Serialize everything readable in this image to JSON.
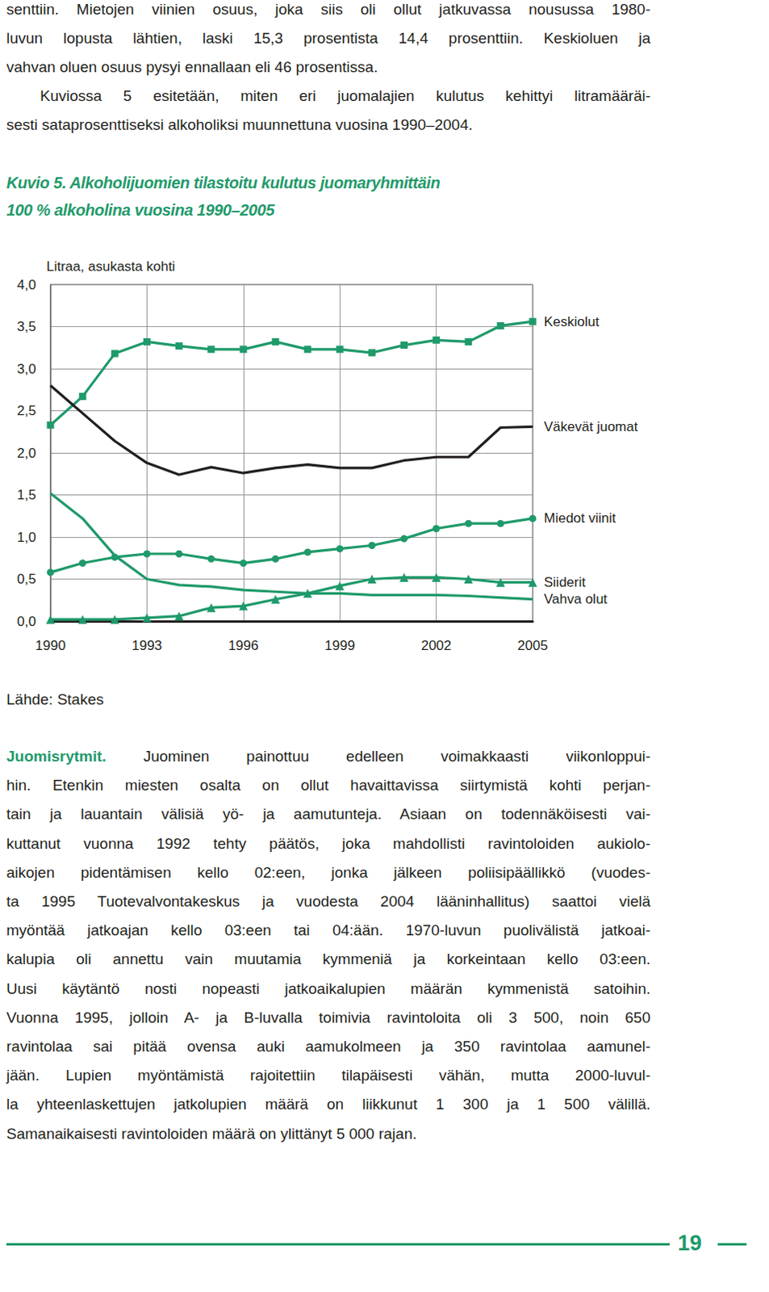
{
  "intro": {
    "paragraphs": [
      {
        "lines": [
          "senttiin. Mietojen viinien osuus, joka siis oli ollut jatkuvassa nousussa 1980-",
          "luvun lopusta lähtien, laski 15,3 prosentista 14,4 prosenttiin. Keskioluen ja",
          "vahvan oluen osuus pysyi ennallaan eli 46 prosentissa."
        ]
      },
      {
        "lines": [
          "Kuviossa 5 esitetään, miten eri juomalajien kulutus kehittyi litramääräi-",
          "sesti sataprosenttiseksi alkoholiksi muunnettuna vuosina 1990–2004."
        ]
      }
    ]
  },
  "figure": {
    "title_lines": [
      "Kuvio 5. Alkoholijuomien tilastoitu kulutus juomaryhmittäin",
      "100 % alkoholina vuosina 1990–2005"
    ],
    "source": "Lähde: Stakes"
  },
  "chart_data": {
    "type": "line",
    "ylabel": "Litraa, asukasta kohti",
    "x": [
      1990,
      1991,
      1992,
      1993,
      1994,
      1995,
      1996,
      1997,
      1998,
      1999,
      2000,
      2001,
      2002,
      2003,
      2004,
      2005
    ],
    "xlim": [
      1990,
      2005
    ],
    "xticks": [
      1990,
      1993,
      1996,
      1999,
      2002,
      2005
    ],
    "ylim": [
      0,
      4
    ],
    "yticks": [
      {
        "value": 0,
        "label": "0,0"
      },
      {
        "value": 0.5,
        "label": "0,5"
      },
      {
        "value": 1,
        "label": "1,0"
      },
      {
        "value": 1.5,
        "label": "1,5"
      },
      {
        "value": 2,
        "label": "2,0"
      },
      {
        "value": 2.5,
        "label": "2,5"
      },
      {
        "value": 3,
        "label": "3,0"
      },
      {
        "value": 3.5,
        "label": "3,5"
      },
      {
        "value": 4,
        "label": "4,0"
      }
    ],
    "grid": true,
    "series": [
      {
        "name": "Keskiolut",
        "color": "#1f9a6a",
        "marker": "square",
        "values": [
          2.33,
          2.67,
          3.18,
          3.32,
          3.27,
          3.23,
          3.23,
          3.32,
          3.23,
          3.23,
          3.19,
          3.28,
          3.34,
          3.32,
          3.51,
          3.56
        ]
      },
      {
        "name": "Väkevät juomat",
        "color": "#231f20",
        "marker": "none",
        "values": [
          2.8,
          2.47,
          2.14,
          1.88,
          1.74,
          1.83,
          1.76,
          1.82,
          1.86,
          1.82,
          1.82,
          1.91,
          1.95,
          1.95,
          2.3,
          2.31
        ]
      },
      {
        "name": "Miedot viinit",
        "color": "#1f9a6a",
        "marker": "circle",
        "values": [
          0.58,
          0.69,
          0.76,
          0.8,
          0.8,
          0.74,
          0.69,
          0.74,
          0.82,
          0.86,
          0.9,
          0.98,
          1.1,
          1.16,
          1.16,
          1.22
        ]
      },
      {
        "name": "Siiderit",
        "color": "#1f9a6a",
        "marker": "triangle",
        "values": [
          0.02,
          0.02,
          0.02,
          0.04,
          0.06,
          0.16,
          0.18,
          0.26,
          0.33,
          0.42,
          0.5,
          0.52,
          0.52,
          0.5,
          0.46,
          0.46
        ]
      },
      {
        "name": "Vahva olut",
        "color": "#1f9a6a",
        "marker": "none",
        "values": [
          1.52,
          1.22,
          0.78,
          0.5,
          0.43,
          0.41,
          0.37,
          0.35,
          0.33,
          0.33,
          0.31,
          0.31,
          0.31,
          0.3,
          0.28,
          0.26
        ]
      }
    ]
  },
  "section": {
    "heading": "Juomisrytmit.",
    "lines": [
      "Juominen painottuu edelleen voimakkaasti viikonloppui-",
      "hin. Etenkin miesten osalta on ollut havaittavissa siirtymistä kohti perjan-",
      "tain ja lauantain välisiä yö- ja aamutunteja. Asiaan on todennäköisesti vai-",
      "kuttanut vuonna 1992 tehty päätös, joka mahdollisti ravintoloiden aukiolo-",
      "aikojen pidentämisen kello 02:een, jonka jälkeen poliisipäällikkö (vuodes-",
      "ta 1995 Tuotevalvontakeskus ja vuodesta 2004 lääninhallitus) saattoi vielä",
      "myöntää jatkoajan kello 03:een tai 04:ään. 1970-luvun puolivälistä jatkoai-",
      "kalupia oli annettu vain muutamia kymmeniä ja korkeintaan kello 03:een.",
      "Uusi käytäntö nosti nopeasti jatkoaikalupien määrän kymmenistä satoihin.",
      "Vuonna 1995, jolloin A- ja B-luvalla toimivia ravintoloita oli 3 500, noin 650",
      "ravintolaa sai pitää ovensa auki aamukolmeen ja 350 ravintolaa aamunel-",
      "jään. Lupien myöntämistä rajoitettiin tilapäisesti vähän, mutta 2000-luvul-",
      "la yhteenlaskettujen jatkolupien määrä on liikkunut 1 300 ja 1 500 välillä.",
      "Samanaikaisesti ravintoloiden määrä on ylittänyt 5 000 rajan."
    ]
  },
  "page_number": "19"
}
